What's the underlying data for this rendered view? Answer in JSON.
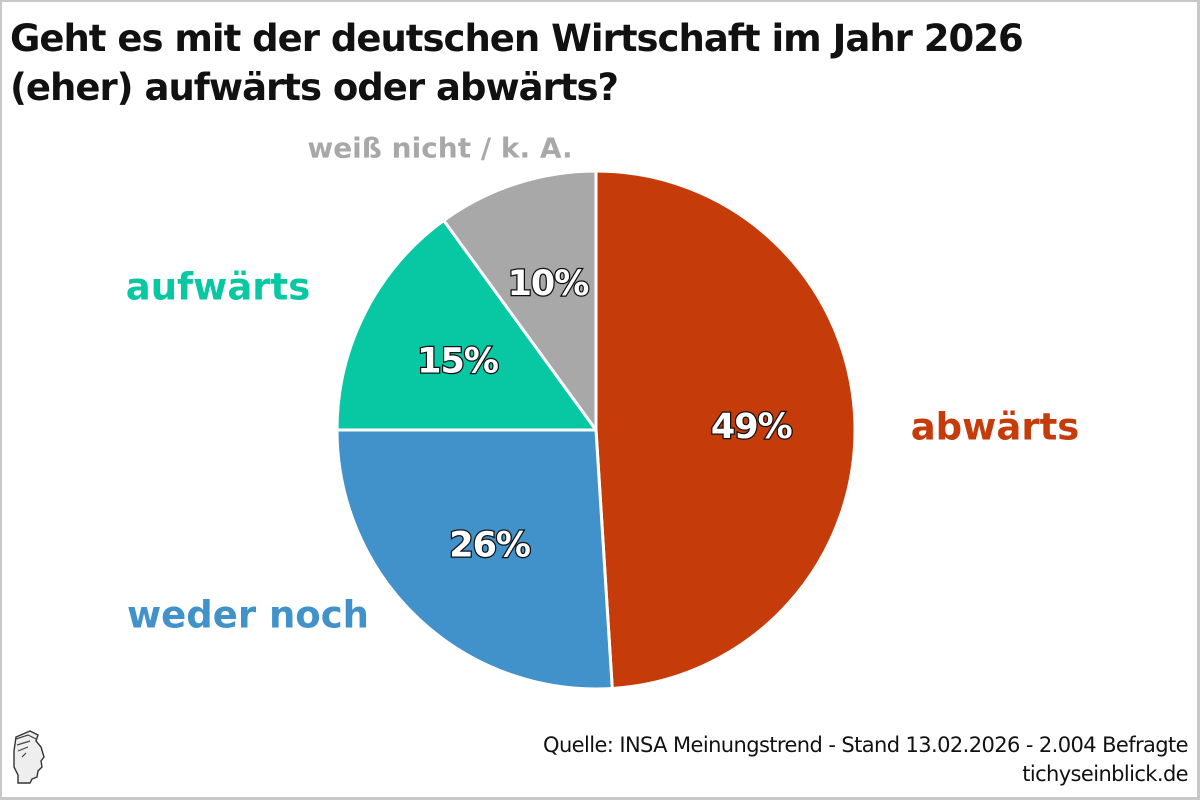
{
  "title": [
    "Geht es mit der deutschen Wirtschaft im Jahr 2026",
    "(eher) aufwärts oder abwärts?"
  ],
  "chart_data": {
    "type": "pie",
    "title": "Geht es mit der deutschen Wirtschaft im Jahr 2026 (eher) aufwärts oder abwärts?",
    "categories": [
      "abwärts",
      "weder noch",
      "aufwärts",
      "weiß nicht / k. A."
    ],
    "values": [
      49,
      26,
      15,
      10
    ],
    "value_labels": [
      "49%",
      "26%",
      "15%",
      "10%"
    ],
    "colors": [
      "#c63b0a",
      "#4191cb",
      "#07c8a2",
      "#a8a8a8"
    ],
    "start": "12 o'clock",
    "direction": "clockwise"
  },
  "footer": {
    "source": "Quelle: INSA Meinungstrend - Stand 13.02.2026 - 2.004 Befragte",
    "site": "tichyseinblick.de",
    "logo_icon": "hermes-head-logo-icon"
  }
}
